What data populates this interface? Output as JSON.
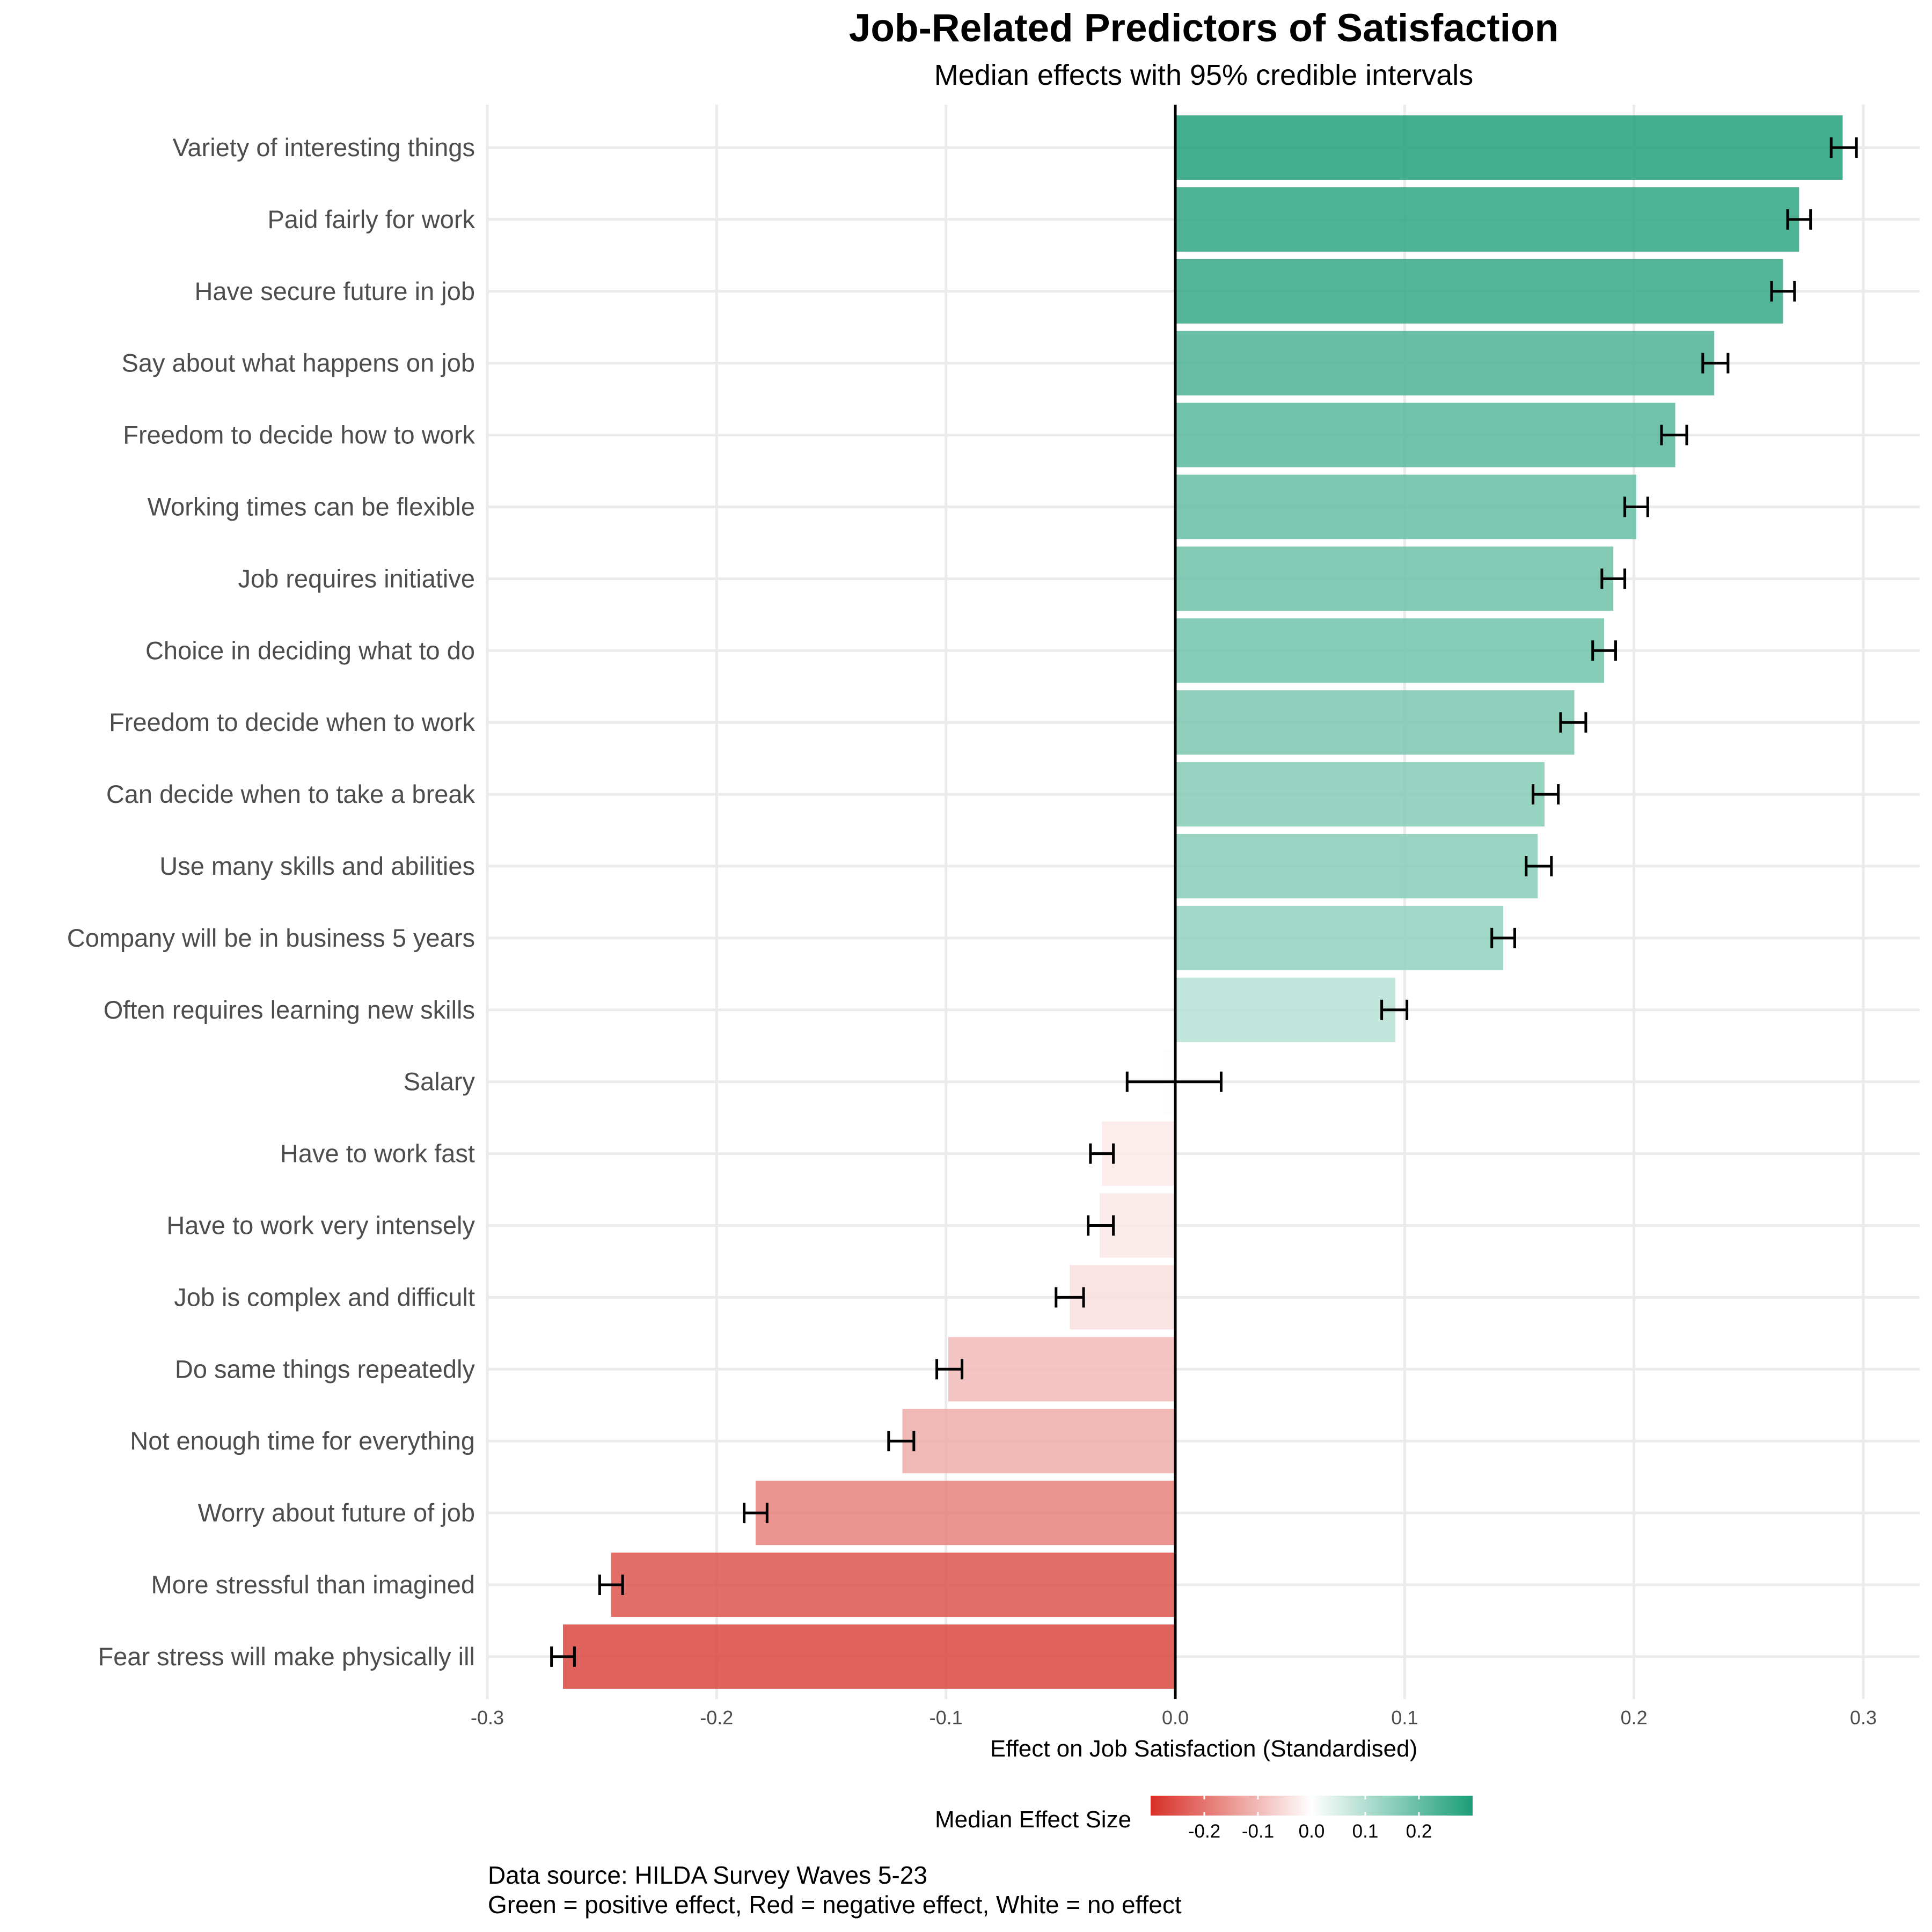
{
  "chart_data": {
    "type": "bar",
    "orientation": "horizontal",
    "title": "Job-Related Predictors of Satisfaction",
    "subtitle": "Median effects with 95% credible intervals",
    "xlabel": "Effect on Job Satisfaction (Standardised)",
    "ylabel": "",
    "xlim": [
      -0.3,
      0.3
    ],
    "x_ticks": [
      -0.3,
      -0.2,
      -0.1,
      0.0,
      0.1,
      0.2,
      0.3
    ],
    "x_tick_labels": [
      "-0.3",
      "-0.2",
      "-0.1",
      "0.0",
      "0.1",
      "0.2",
      "0.3"
    ],
    "grid": true,
    "categories": [
      "Variety of interesting things",
      "Paid fairly for work",
      "Have secure future in job",
      "Say about what happens on job",
      "Freedom to decide how to work",
      "Working times can be flexible",
      "Job requires initiative",
      "Choice in deciding what to do",
      "Freedom to decide when to work",
      "Can decide when to take a break",
      "Use many skills and abilities",
      "Company will be in business 5 years",
      "Often requires learning new skills",
      "Salary",
      "Have to work fast",
      "Have to work very intensely",
      "Job is complex and difficult",
      "Do same things repeatedly",
      "Not enough time for everything",
      "Worry about future of job",
      "More stressful than imagined",
      "Fear stress will make physically ill"
    ],
    "series": [
      {
        "name": "Median effect",
        "values": [
          0.291,
          0.272,
          0.265,
          0.235,
          0.218,
          0.201,
          0.191,
          0.187,
          0.174,
          0.161,
          0.158,
          0.143,
          0.096,
          -0.005,
          -0.032,
          -0.033,
          -0.046,
          -0.099,
          -0.119,
          -0.183,
          -0.246,
          -0.267
        ]
      },
      {
        "name": "95% CI lower",
        "values": [
          0.286,
          0.267,
          0.26,
          0.23,
          0.212,
          0.196,
          0.186,
          0.182,
          0.168,
          0.156,
          0.153,
          0.138,
          0.09,
          -0.021,
          -0.037,
          -0.038,
          -0.052,
          -0.104,
          -0.125,
          -0.188,
          -0.251,
          -0.272
        ]
      },
      {
        "name": "95% CI upper",
        "values": [
          0.297,
          0.277,
          0.27,
          0.241,
          0.223,
          0.206,
          0.196,
          0.192,
          0.179,
          0.167,
          0.164,
          0.148,
          0.101,
          0.02,
          -0.027,
          -0.027,
          -0.04,
          -0.093,
          -0.114,
          -0.178,
          -0.241,
          -0.262
        ]
      }
    ],
    "colors": {
      "negative": "#d73027",
      "neutral": "#ffffff",
      "positive": "#1b9e77",
      "bar_opacity": 0.85,
      "grid": "#ebebeb",
      "zero_line": "#000000",
      "errorbar": "#000000"
    },
    "legend": {
      "title": "Median Effect Size",
      "placement": "bottom",
      "type": "colorbar",
      "range": [
        -0.3,
        0.3
      ],
      "ticks": [
        -0.2,
        -0.1,
        0.0,
        0.1,
        0.2
      ],
      "tick_labels": [
        "-0.2",
        "-0.1",
        "0.0",
        "0.1",
        "0.2"
      ]
    },
    "caption": [
      "Data source: HILDA Survey Waves 5-23",
      "Green = positive effect, Red = negative effect, White = no effect"
    ]
  }
}
